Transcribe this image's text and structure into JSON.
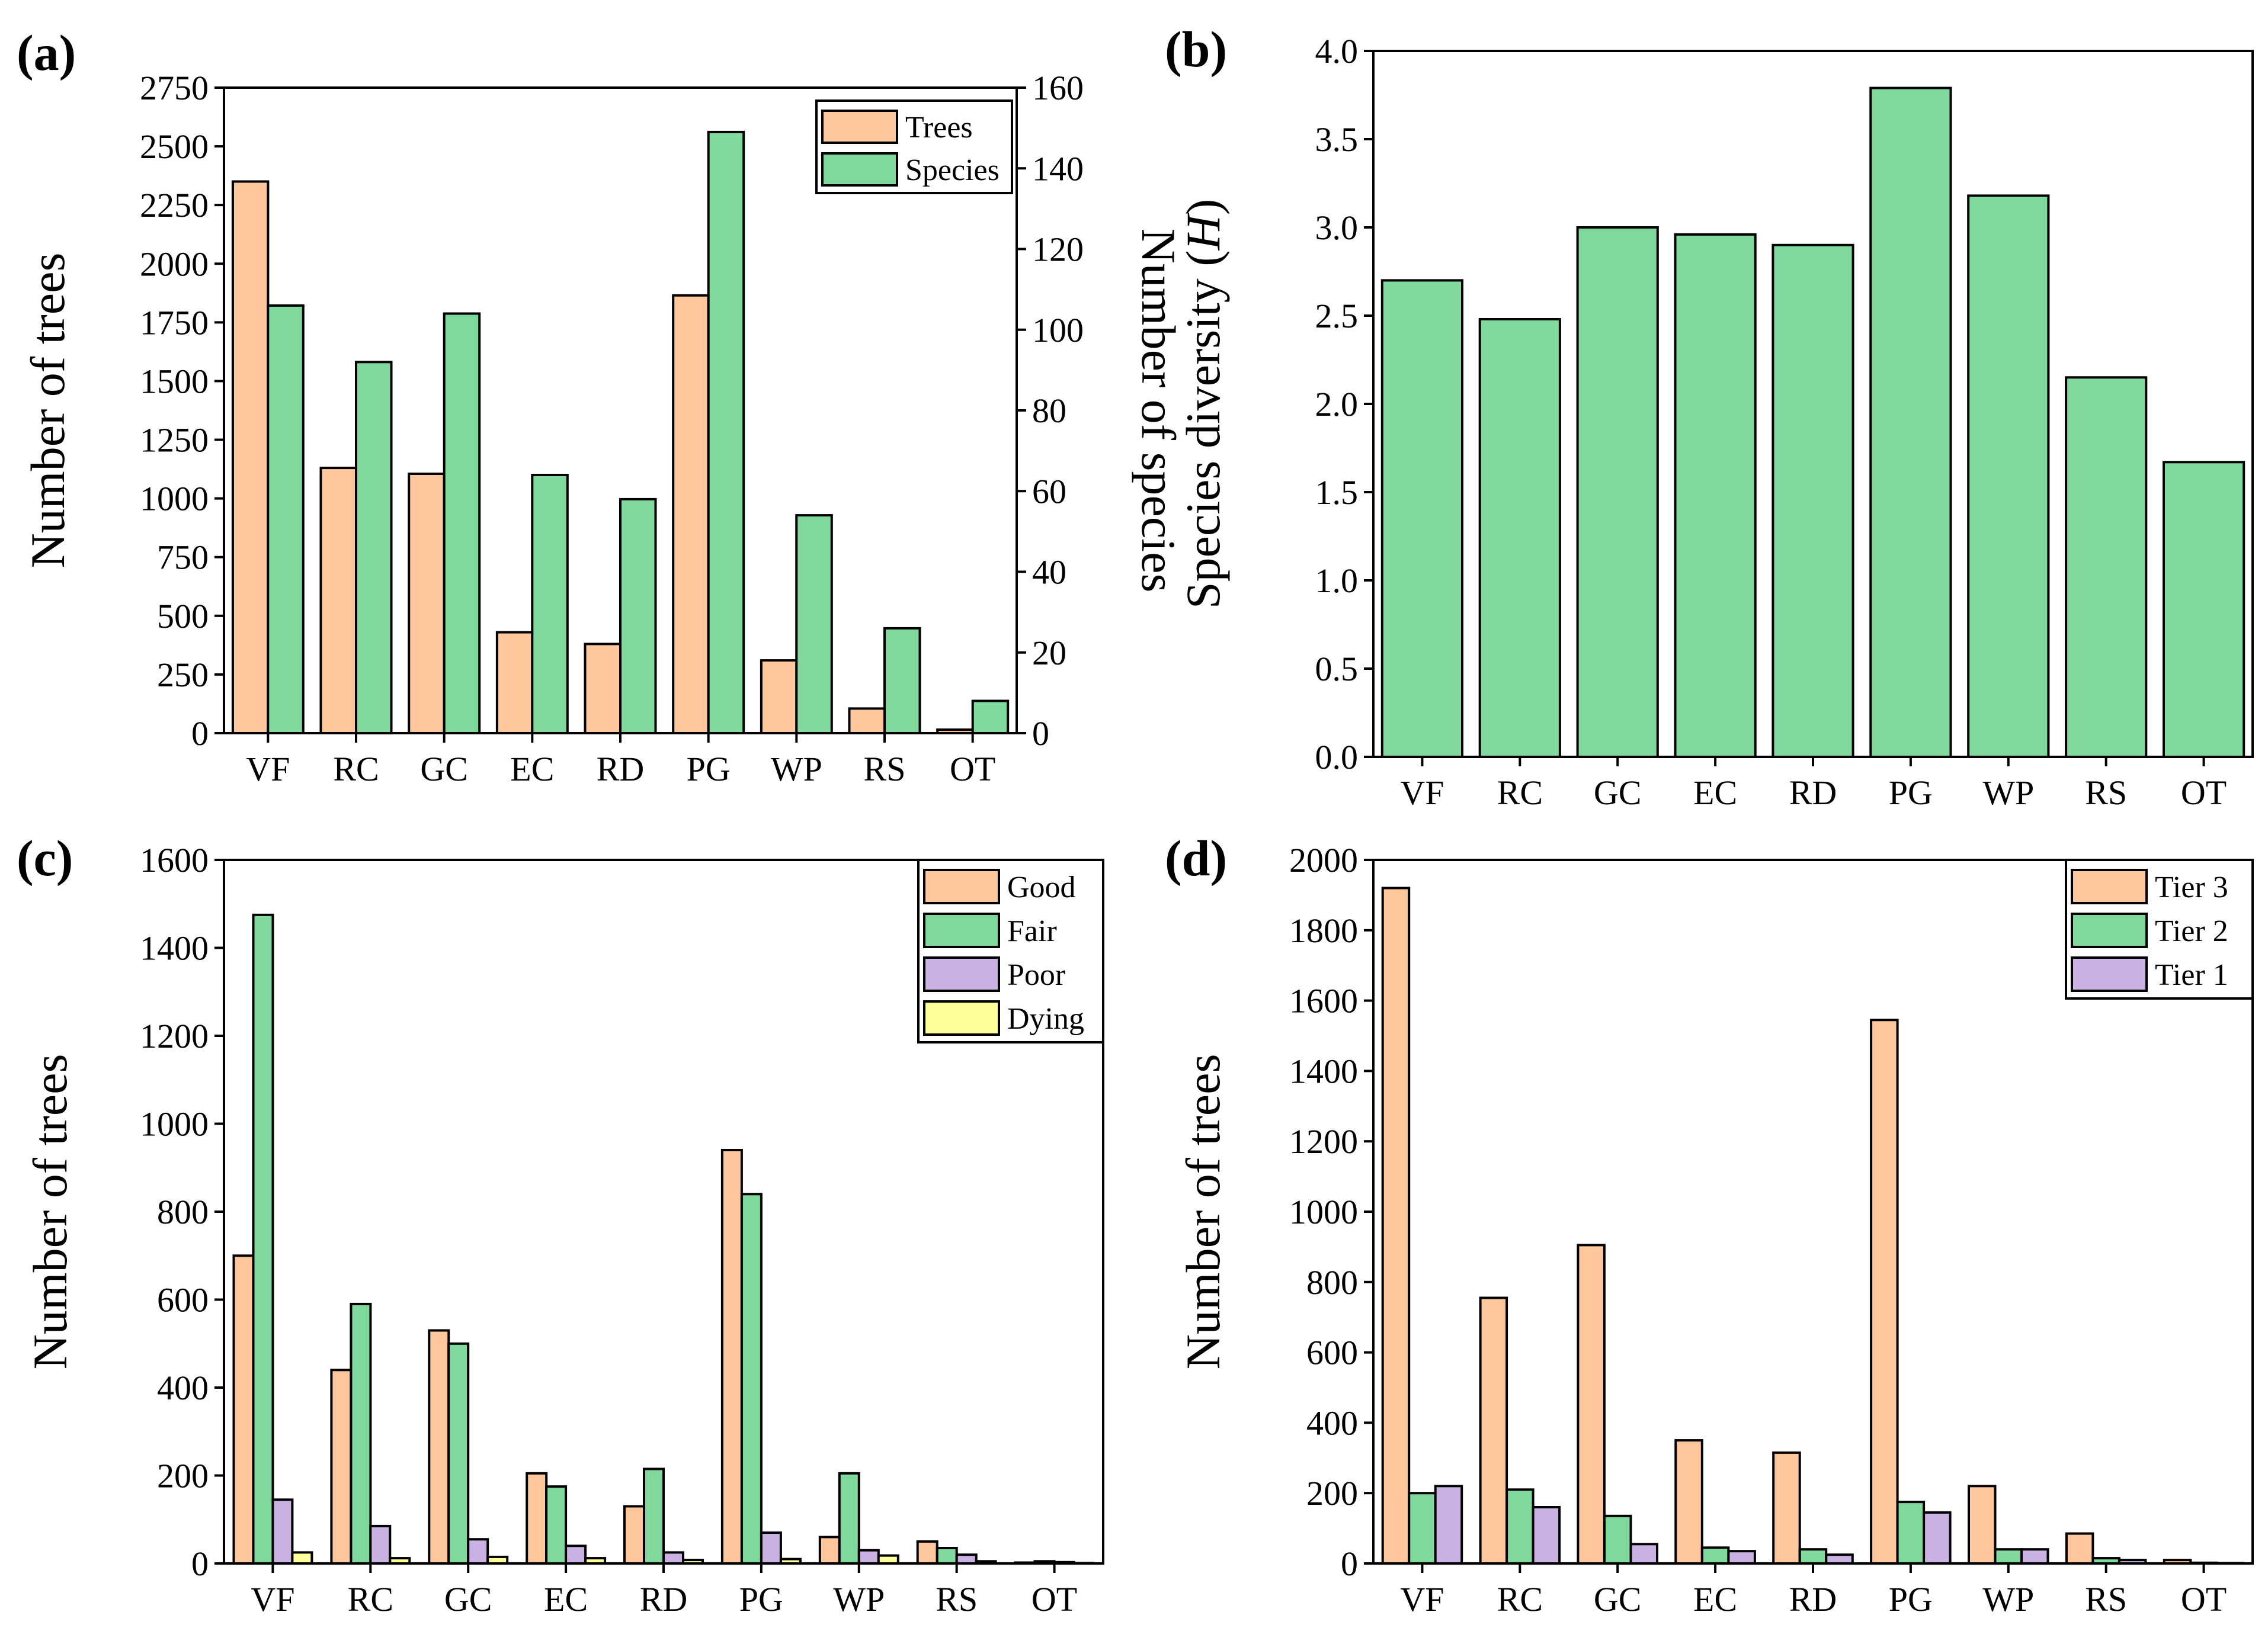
{
  "colors": {
    "orange": "#FDC79B",
    "green": "#7FD89C",
    "purple": "#C9B2E3",
    "yellow": "#FFFF99"
  },
  "chart_data": [
    {
      "id": "a",
      "panel_label": "(a)",
      "type": "bar",
      "categories": [
        "VF",
        "RC",
        "GC",
        "EC",
        "RD",
        "PG",
        "WP",
        "RS",
        "OT"
      ],
      "series": [
        {
          "name": "Trees",
          "axis": "left",
          "color": "orange",
          "values": [
            2350,
            1130,
            1105,
            430,
            380,
            1865,
            310,
            105,
            15
          ]
        },
        {
          "name": "Species",
          "axis": "right",
          "color": "green",
          "values": [
            106,
            92,
            104,
            64,
            58,
            149,
            54,
            26,
            8
          ]
        }
      ],
      "ylabel": "Number of trees",
      "ylim": [
        0,
        2750
      ],
      "yticks": [
        "0",
        "250",
        "500",
        "750",
        "1000",
        "1250",
        "1500",
        "1750",
        "2000",
        "2250",
        "2500",
        "2750"
      ],
      "y2label": "Number of species",
      "y2lim": [
        0,
        160
      ],
      "y2ticks": [
        "0",
        "20",
        "40",
        "60",
        "80",
        "100",
        "120",
        "140",
        "160"
      ],
      "legend": [
        "Trees",
        "Species"
      ],
      "legend_position": "top-right"
    },
    {
      "id": "b",
      "panel_label": "(b)",
      "type": "bar",
      "categories": [
        "VF",
        "RC",
        "GC",
        "EC",
        "RD",
        "PG",
        "WP",
        "RS",
        "OT"
      ],
      "series": [
        {
          "name": "Species diversity",
          "axis": "left",
          "color": "green",
          "values": [
            2.7,
            2.48,
            3.0,
            2.96,
            2.9,
            3.79,
            3.18,
            2.15,
            1.67
          ]
        }
      ],
      "ylabel": "Species diversity (",
      "ylabel_italic": "H",
      "ylabel_end": ")",
      "ylim": [
        0,
        4
      ],
      "yticks": [
        "0.0",
        "0.5",
        "1.0",
        "1.5",
        "2.0",
        "2.5",
        "3.0",
        "3.5",
        "4.0"
      ],
      "legend": []
    },
    {
      "id": "c",
      "panel_label": "(c)",
      "type": "bar",
      "categories": [
        "VF",
        "RC",
        "GC",
        "EC",
        "RD",
        "PG",
        "WP",
        "RS",
        "OT"
      ],
      "series": [
        {
          "name": "Good",
          "axis": "left",
          "color": "orange",
          "values": [
            700,
            440,
            530,
            205,
            130,
            940,
            60,
            50,
            2
          ]
        },
        {
          "name": "Fair",
          "axis": "left",
          "color": "green",
          "values": [
            1475,
            590,
            500,
            175,
            215,
            840,
            205,
            35,
            5
          ]
        },
        {
          "name": "Poor",
          "axis": "left",
          "color": "purple",
          "values": [
            145,
            85,
            55,
            40,
            25,
            70,
            30,
            20,
            3
          ]
        },
        {
          "name": "Dying",
          "axis": "left",
          "color": "yellow",
          "values": [
            25,
            12,
            15,
            12,
            8,
            10,
            18,
            5,
            1
          ]
        }
      ],
      "ylabel": "Number of trees",
      "ylim": [
        0,
        1600
      ],
      "yticks": [
        "0",
        "200",
        "400",
        "600",
        "800",
        "1000",
        "1200",
        "1400",
        "1600"
      ],
      "legend": [
        "Good",
        "Fair",
        "Poor",
        "Dying"
      ],
      "legend_position": "top-right"
    },
    {
      "id": "d",
      "panel_label": "(d)",
      "type": "bar",
      "categories": [
        "VF",
        "RC",
        "GC",
        "EC",
        "RD",
        "PG",
        "WP",
        "RS",
        "OT"
      ],
      "series": [
        {
          "name": "Tier 3",
          "axis": "left",
          "color": "orange",
          "values": [
            1920,
            755,
            905,
            350,
            315,
            1545,
            220,
            85,
            10
          ]
        },
        {
          "name": "Tier 2",
          "axis": "left",
          "color": "green",
          "values": [
            200,
            210,
            135,
            45,
            40,
            175,
            40,
            15,
            2
          ]
        },
        {
          "name": "Tier 1",
          "axis": "left",
          "color": "purple",
          "values": [
            220,
            160,
            55,
            35,
            25,
            145,
            40,
            10,
            1
          ]
        }
      ],
      "ylabel": "Number of trees",
      "ylim": [
        0,
        2000
      ],
      "yticks": [
        "0",
        "200",
        "400",
        "600",
        "800",
        "1000",
        "1200",
        "1400",
        "1600",
        "1800",
        "2000"
      ],
      "legend": [
        "Tier 3",
        "Tier 2",
        "Tier 1"
      ],
      "legend_position": "top-right"
    }
  ]
}
